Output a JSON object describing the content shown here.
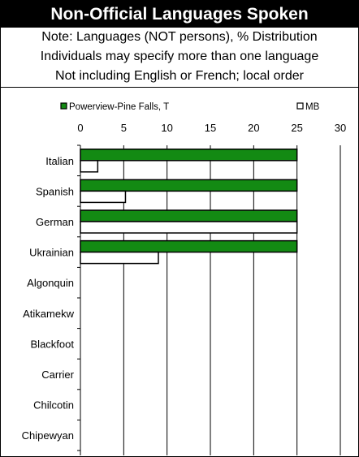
{
  "title": "Non-Official Languages Spoken",
  "notes": [
    "Note: Languages (NOT persons), % Distribution",
    "Individuals may specify more than one language",
    "Not including English or French; local order"
  ],
  "chart_data": {
    "type": "bar",
    "orientation": "horizontal",
    "categories": [
      "Italian",
      "Spanish",
      "German",
      "Ukrainian",
      "Algonquin",
      "Atikamekw",
      "Blackfoot",
      "Carrier",
      "Chilcotin",
      "Chipewyan"
    ],
    "series": [
      {
        "name": "Powerview-Pine Falls, T",
        "color": "#138a13",
        "values": [
          25,
          25,
          25,
          25,
          0,
          0,
          0,
          0,
          0,
          0
        ]
      },
      {
        "name": "MB",
        "color": "#ffffff",
        "values": [
          2.0,
          5.2,
          25,
          9.0,
          0,
          0,
          0,
          0,
          0,
          0
        ]
      }
    ],
    "xlim": [
      0,
      30
    ],
    "xticks": [
      "0",
      "5",
      "10",
      "15",
      "20",
      "25",
      "30"
    ],
    "grid": "vertical",
    "legend": "top"
  }
}
